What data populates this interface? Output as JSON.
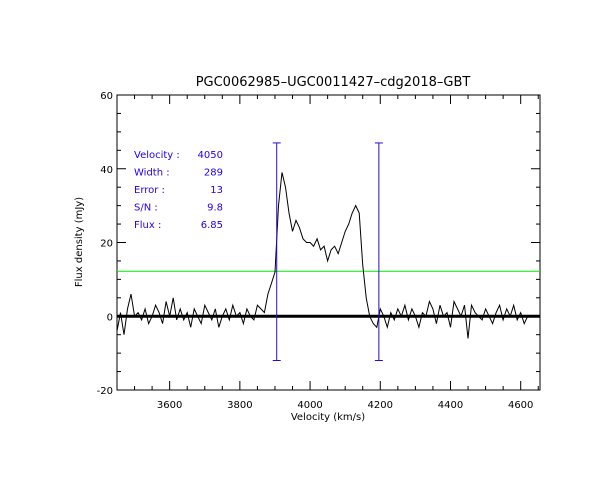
{
  "chart_data": {
    "type": "line",
    "title": "PGC0062985–UGC0011427–cdg2018–GBT",
    "xlabel": "Velocity (km/s)",
    "ylabel": "Flux density (mJy)",
    "xlim": [
      3450,
      4655
    ],
    "ylim": [
      -20,
      60
    ],
    "xticks": [
      3600,
      3800,
      4000,
      4200,
      4400,
      4600
    ],
    "yticks": [
      -20,
      0,
      20,
      40,
      60
    ],
    "grid": false,
    "colors": {
      "spectrum": "#000000",
      "markers": "#2a0dcc",
      "threshold": "#00ee00",
      "annotation": "#2200ee",
      "zero": "#000000"
    },
    "threshold_level": 12.2,
    "velocity_markers": [
      3905,
      4196
    ],
    "marker_range": [
      -12,
      47
    ],
    "annotations": [
      {
        "label": "Velocity :",
        "value": "4050"
      },
      {
        "label": "Width :",
        "value": "289"
      },
      {
        "label": "Error :",
        "value": "13"
      },
      {
        "label": "S/N :",
        "value": "9.8"
      },
      {
        "label": "Flux :",
        "value": "6.85"
      }
    ],
    "x_start": 3450,
    "x_step": 10,
    "values": [
      -4,
      1,
      -5,
      2,
      6,
      0,
      1,
      -1,
      2,
      -2,
      0,
      3,
      1,
      -2,
      4,
      0,
      5,
      -1,
      2,
      -1,
      1,
      -3,
      2,
      0,
      -2,
      3,
      1,
      -1,
      2,
      -3,
      0,
      2,
      -1,
      3,
      0,
      1,
      -2,
      2,
      0,
      -1,
      3,
      2,
      1,
      6,
      9,
      12,
      30,
      39,
      35,
      28,
      23,
      26,
      24,
      21,
      20,
      20,
      19,
      21,
      18,
      19,
      15,
      18,
      19,
      17,
      20,
      23,
      25,
      28,
      30,
      28,
      14,
      5,
      0,
      -2,
      -3,
      2,
      0,
      -3,
      1,
      -1,
      2,
      0,
      3,
      -1,
      2,
      0,
      -3,
      1,
      0,
      4,
      2,
      -2,
      3,
      0,
      1,
      -3,
      4,
      2,
      0,
      3,
      -6,
      3,
      1,
      0,
      -1,
      2,
      0,
      -2,
      1,
      3,
      -1,
      2,
      0,
      3,
      -1,
      1,
      -2,
      0
    ]
  }
}
